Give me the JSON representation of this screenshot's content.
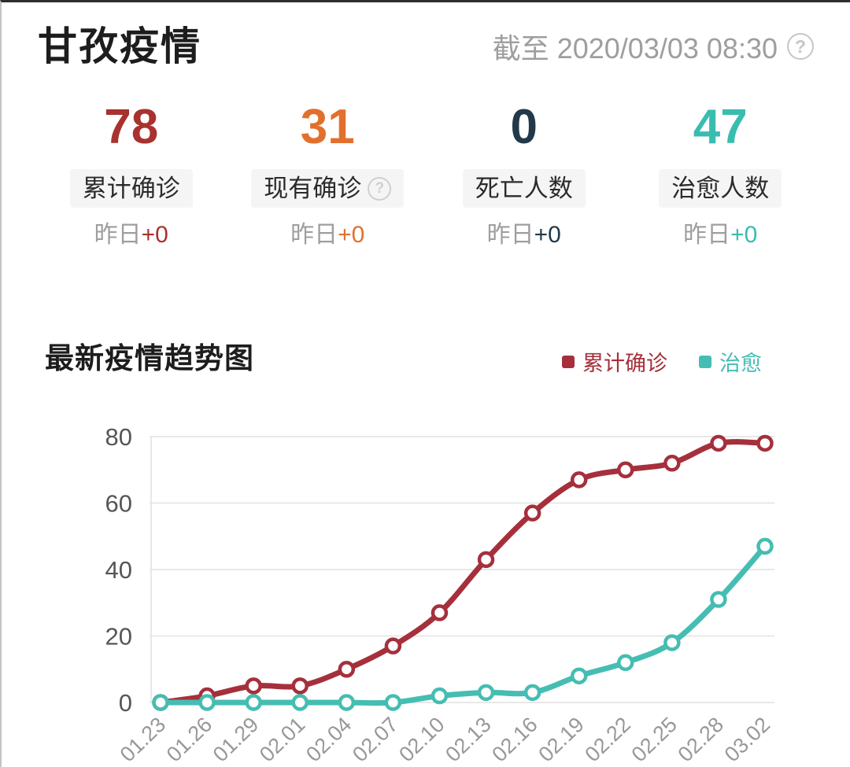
{
  "header": {
    "title": "甘孜疫情",
    "as_of": "截至 2020/03/03 08:30",
    "help_icon": "question-circle-icon"
  },
  "stats": [
    {
      "value": "78",
      "label": "累计确诊",
      "delta_prefix": "昨日",
      "delta": "+0",
      "color": "#a8322e"
    },
    {
      "value": "31",
      "label": "现有确诊",
      "delta_prefix": "昨日",
      "delta": "+0",
      "color": "#e2702d",
      "help_icon": "question-circle-icon"
    },
    {
      "value": "0",
      "label": "死亡人数",
      "delta_prefix": "昨日",
      "delta": "+0",
      "color": "#22394a"
    },
    {
      "value": "47",
      "label": "治愈人数",
      "delta_prefix": "昨日",
      "delta": "+0",
      "color": "#3abcb0"
    }
  ],
  "trend": {
    "title": "最新疫情趋势图",
    "legend": [
      {
        "label": "累计确诊",
        "color": "#a5303c"
      },
      {
        "label": "治愈",
        "color": "#45bdb2"
      }
    ],
    "chart_data": {
      "type": "line",
      "title": "最新疫情趋势图",
      "categories": [
        "01.23",
        "01.26",
        "01.29",
        "02.01",
        "02.04",
        "02.07",
        "02.10",
        "02.13",
        "02.16",
        "02.19",
        "02.22",
        "02.25",
        "02.28",
        "03.02"
      ],
      "series": [
        {
          "name": "累计确诊",
          "color": "#a5303c",
          "values": [
            0,
            2,
            5,
            5,
            10,
            17,
            27,
            43,
            57,
            67,
            70,
            72,
            78,
            78
          ]
        },
        {
          "name": "治愈",
          "color": "#45bdb2",
          "values": [
            0,
            0,
            0,
            0,
            0,
            0,
            2,
            3,
            3,
            8,
            12,
            18,
            31,
            47
          ]
        }
      ],
      "xlabel": "",
      "ylabel": "",
      "ylim": [
        0,
        80
      ],
      "yticks": [
        0,
        20,
        40,
        60,
        80
      ],
      "grid": true,
      "legend_position": "top-right",
      "marker": "circle",
      "grid_color": "#e8e8e8",
      "ytick_color": "#565656",
      "xtick_color": "#989898"
    }
  }
}
